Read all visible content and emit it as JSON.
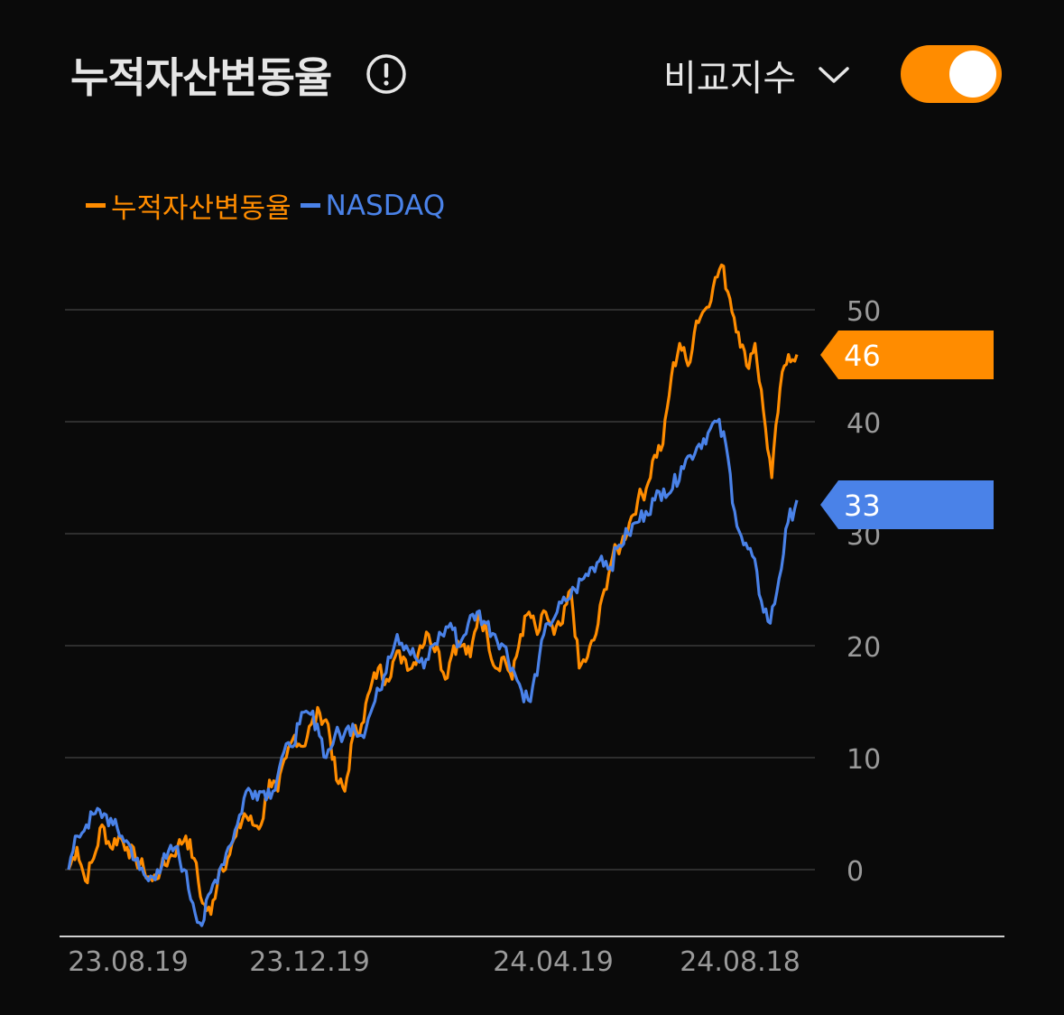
{
  "header": {
    "title": "누적자산변동율",
    "compare_label": "비교지수",
    "toggle_on": true
  },
  "colors": {
    "fund": "#ff8c00",
    "index": "#4a82e8",
    "grid": "#3a3a3a",
    "tick": "#9a9a9a",
    "toggle": "#ff8c00"
  },
  "icons": {
    "info": "info-circle-icon",
    "dropdown": "chevron-down-icon"
  },
  "chart_data": {
    "type": "line",
    "yticks": [
      0,
      10,
      20,
      30,
      40,
      50
    ],
    "xticks": [
      "23.08.19",
      "23.12.19",
      "24.04.19",
      "24.08.18"
    ],
    "ylim": [
      -6,
      56
    ],
    "grid": true,
    "legend_position": "top-left",
    "series": [
      {
        "name": "누적자산변동율",
        "color": "#ff8c00",
        "last_value_label": "46",
        "values": [
          0,
          2,
          -1,
          1,
          4,
          2,
          3,
          2,
          1,
          0,
          -1,
          0,
          1,
          2,
          3,
          1,
          -3,
          -4,
          0,
          1,
          3,
          5,
          4,
          4,
          8,
          7,
          10,
          12,
          11,
          13,
          14,
          13,
          8,
          7,
          12,
          13,
          16,
          18,
          17,
          19,
          19,
          18,
          20,
          21,
          20,
          17,
          20,
          20,
          19,
          23,
          21,
          18,
          19,
          17,
          21,
          23,
          21,
          23,
          21,
          22,
          25,
          18,
          19,
          21,
          25,
          28,
          29,
          31,
          33,
          34,
          37,
          38,
          44,
          47,
          45,
          49,
          50,
          52,
          54,
          51,
          48,
          45,
          47,
          41,
          35,
          43,
          46,
          46
        ]
      },
      {
        "name": "NASDAQ",
        "color": "#4a82e8",
        "last_value_label": "33",
        "values": [
          0,
          3,
          4,
          5,
          5,
          4,
          3,
          2,
          0,
          -1,
          0,
          1,
          2,
          0,
          -3,
          -5,
          -2,
          0,
          2,
          4,
          7,
          7,
          7,
          7,
          10,
          11,
          13,
          14,
          13,
          10,
          12,
          12,
          13,
          12,
          14,
          16,
          19,
          21,
          20,
          19,
          18,
          20,
          21,
          22,
          20,
          22,
          23,
          22,
          21,
          20,
          18,
          16,
          15,
          19,
          22,
          23,
          24,
          25,
          26,
          27,
          28,
          27,
          29,
          30,
          31,
          32,
          33,
          34,
          34,
          36,
          37,
          38,
          39,
          40,
          38,
          32,
          29,
          28,
          24,
          22,
          26,
          31,
          33
        ]
      }
    ]
  }
}
